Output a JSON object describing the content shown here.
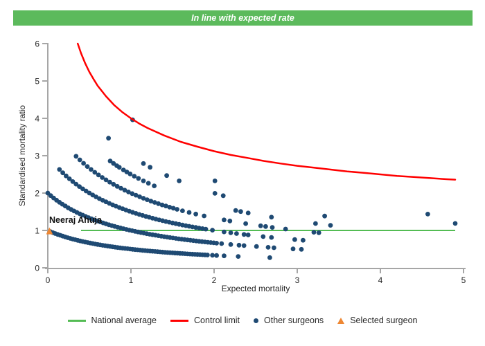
{
  "banner": {
    "text": "In line with expected rate",
    "color": "#5CBA5C"
  },
  "chart_data": {
    "type": "scatter",
    "title": "",
    "xlabel": "Expected mortality",
    "ylabel": "Standardised mortality ratio",
    "xlim": [
      0,
      5
    ],
    "ylim": [
      0,
      6
    ],
    "x_ticks": [
      0,
      1,
      2,
      3,
      4,
      5
    ],
    "y_ticks": [
      0,
      1,
      2,
      3,
      4,
      5,
      6
    ],
    "grid": false,
    "axis_color": "#A6A6A6",
    "tick_label_color": "#262626",
    "national_average": {
      "smr": 1,
      "expected_from": 0.4,
      "expected_to": 4.9,
      "color": "#54BC54"
    },
    "control_limit": {
      "color": "#FF0000",
      "rule": "smr = 1 + 3 / sqrt(expected)",
      "points": [
        [
          0.36,
          6
        ],
        [
          0.4,
          5.74
        ],
        [
          0.45,
          5.47
        ],
        [
          0.5,
          5.24
        ],
        [
          0.55,
          5.05
        ],
        [
          0.6,
          4.87
        ],
        [
          0.7,
          4.59
        ],
        [
          0.8,
          4.35
        ],
        [
          0.9,
          4.16
        ],
        [
          1,
          4
        ],
        [
          1.1,
          3.86
        ],
        [
          1.2,
          3.74
        ],
        [
          1.4,
          3.54
        ],
        [
          1.6,
          3.37
        ],
        [
          1.8,
          3.24
        ],
        [
          2,
          3.12
        ],
        [
          2.2,
          3.02
        ],
        [
          2.4,
          2.94
        ],
        [
          2.6,
          2.86
        ],
        [
          2.8,
          2.79
        ],
        [
          3,
          2.73
        ],
        [
          3.2,
          2.68
        ],
        [
          3.4,
          2.63
        ],
        [
          3.6,
          2.58
        ],
        [
          3.8,
          2.54
        ],
        [
          4,
          2.5
        ],
        [
          4.2,
          2.46
        ],
        [
          4.4,
          2.43
        ],
        [
          4.6,
          2.4
        ],
        [
          4.8,
          2.37
        ],
        [
          4.9,
          2.36
        ]
      ]
    },
    "other_surgeons": {
      "color": "#1F4A73",
      "marker_radius": 3.4,
      "smr_rule": "smr = deaths / (1 + expected)",
      "series": [
        {
          "deaths": 1,
          "dense_expected": {
            "from": 0.03,
            "to": 1.92,
            "step": 0.03
          },
          "sparse_expected": [
            1.98,
            2.03,
            2.12,
            2.29,
            2.67
          ]
        },
        {
          "deaths": 2,
          "dense_expected": {
            "from": 0.0,
            "to": 2.04,
            "step": 0.035
          },
          "sparse_expected": [
            2.09,
            2.2,
            2.3,
            2.36,
            2.51,
            2.65,
            2.72,
            2.95,
            3.05
          ]
        },
        {
          "deaths": 3,
          "dense_expected": {
            "from": 0.14,
            "to": 1.9,
            "step": 0.04
          },
          "sparse_expected": [
            1.98,
            2.12,
            2.2,
            2.27,
            2.36,
            2.41,
            2.59,
            2.69,
            2.97,
            3.07
          ]
        },
        {
          "deaths": 4,
          "dense_expected": {
            "from": 0.34,
            "to": 1.55,
            "step": 0.045
          },
          "sparse_expected": [
            1.62,
            1.7,
            1.78,
            1.88,
            2.12,
            2.19,
            2.38,
            2.56,
            2.62,
            2.7,
            2.86,
            3.2,
            3.26
          ]
        },
        {
          "deaths": 5,
          "sparse_expected": [
            0.75,
            0.79,
            0.83,
            0.86,
            0.91,
            0.95,
            0.99,
            1.04,
            1.09,
            1.15,
            1.21,
            1.28,
            2.26,
            2.32,
            2.41,
            2.69,
            3.22,
            3.4
          ]
        },
        {
          "deaths": 6,
          "sparse_expected": [
            0.73,
            1.15,
            1.23,
            1.43,
            1.58,
            2.01,
            2.11,
            3.33
          ]
        },
        {
          "deaths": 7,
          "sparse_expected": [
            2.01,
            4.9
          ]
        },
        {
          "deaths": 8,
          "sparse_expected": [
            1.02,
            4.57
          ]
        }
      ]
    },
    "selected_surgeon": {
      "label": "Neeraj Ahuja",
      "expected": 0.02,
      "smr": 0.98,
      "color": "#EE8733"
    }
  },
  "legend": {
    "items": [
      {
        "label": "National average",
        "marker": "line",
        "color": "#54BC54"
      },
      {
        "label": "Control limit",
        "marker": "line",
        "color": "#FF0000"
      },
      {
        "label": "Other surgeons",
        "marker": "dot",
        "color": "#1F4A73"
      },
      {
        "label": "Selected surgeon",
        "marker": "triangle",
        "color": "#EE8733"
      }
    ]
  }
}
